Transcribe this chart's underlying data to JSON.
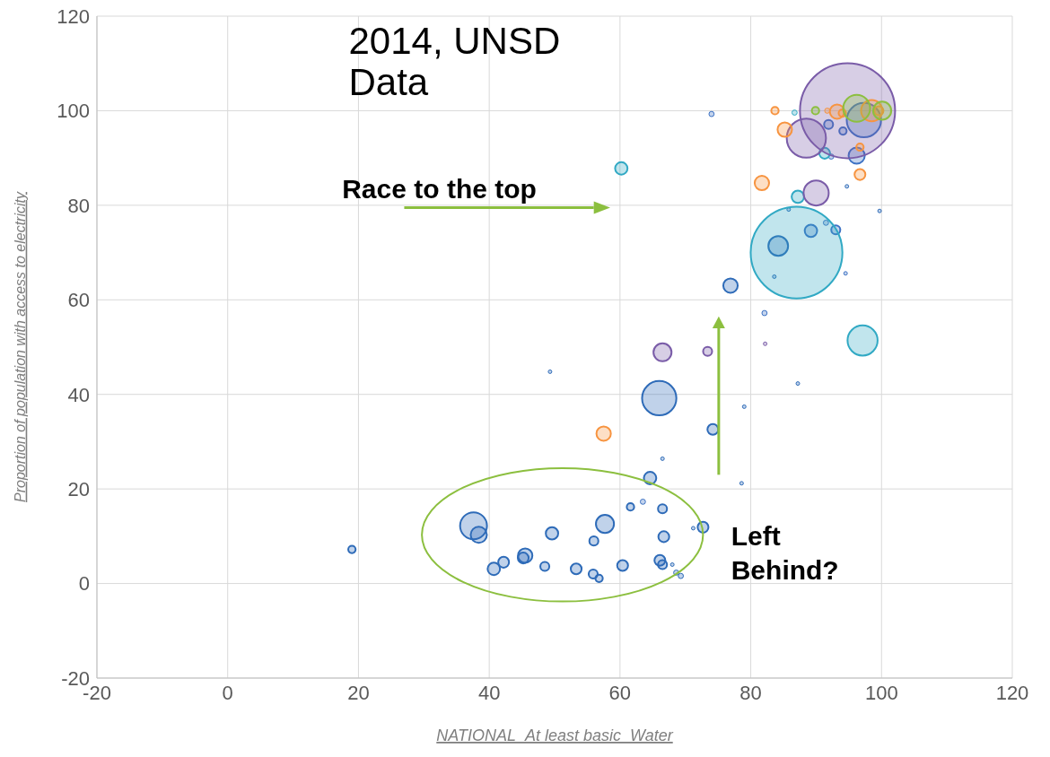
{
  "chart_data": {
    "type": "bubble",
    "title": "2014, UNSD Data",
    "xlabel": "NATIONAL_At least basic_Water",
    "ylabel": "Proportion of population with access to electricity",
    "annotations": [
      "Race to the top",
      "Left Behind?"
    ],
    "xlim": [
      -20,
      120
    ],
    "ylim": [
      -20,
      120
    ],
    "xticks": [
      -20,
      0,
      20,
      40,
      60,
      80,
      100,
      120
    ],
    "yticks": [
      -20,
      0,
      20,
      40,
      60,
      80,
      100,
      120
    ],
    "grid": true,
    "series": [
      {
        "color": "#2e6bb8",
        "x": [
          19.0,
          37.6,
          38.4,
          40.7,
          42.2,
          45.5,
          45.2,
          48.5,
          49.6,
          53.3,
          55.9,
          56.8,
          57.7,
          56.0,
          60.4,
          61.6,
          66.5,
          66.7,
          66.1,
          66.5,
          68.0,
          68.6,
          69.3,
          71.2,
          72.7,
          64.6,
          84.2,
          76.9,
          66.0,
          74.2,
          87.2,
          79.0,
          66.5,
          99.7,
          83.6,
          85.8,
          78.6,
          49.3,
          94.7
        ],
        "values": [
          7.2,
          12.2,
          10.3,
          3.1,
          4.5,
          5.9,
          5.4,
          3.6,
          10.6,
          3.1,
          2.0,
          1.1,
          12.6,
          9.0,
          3.8,
          16.2,
          15.8,
          9.9,
          4.9,
          4.0,
          4.0,
          2.3,
          1.6,
          11.7,
          11.9,
          22.3,
          71.4,
          63.0,
          39.2,
          32.6,
          42.3,
          37.4,
          26.4,
          78.8,
          64.9,
          79.1,
          21.2,
          44.8,
          84.0
        ],
        "sizes": [
          0.006,
          0.08,
          0.029,
          0.017,
          0.013,
          0.023,
          0.013,
          0.009,
          0.017,
          0.013,
          0.009,
          0.006,
          0.036,
          0.009,
          0.013,
          0.006,
          0.009,
          0.013,
          0.013,
          0.009,
          0.0014,
          0.003,
          0.003,
          0.0014,
          0.013,
          0.017,
          0.043,
          0.023,
          0.13,
          0.013,
          0.0014,
          0.0014,
          0.0014,
          0.0014,
          0.0014,
          0.0014,
          0.0014,
          0.0014,
          0.0014
        ]
      },
      {
        "color": "#3d72c4",
        "x": [
          63.5,
          94.5,
          82.1,
          89.2,
          91.5,
          93.0,
          97.3,
          91.9,
          94.1,
          92.3,
          96.2,
          74.0
        ],
        "values": [
          17.3,
          65.6,
          57.2,
          74.6,
          76.3,
          74.8,
          98.0,
          97.1,
          95.7,
          90.3,
          90.5,
          99.3
        ],
        "sizes": [
          0.003,
          0.0014,
          0.003,
          0.017,
          0.003,
          0.009,
          0.13,
          0.009,
          0.006,
          0.003,
          0.029,
          0.003
        ]
      },
      {
        "color": "#31a9c4",
        "x": [
          87.0,
          97.1,
          87.2,
          86.7,
          91.3,
          60.2
        ],
        "values": [
          70.0,
          51.4,
          81.8,
          99.6,
          91.0,
          87.8
        ],
        "sizes": [
          0.93,
          0.1,
          0.017,
          0.003,
          0.013,
          0.017
        ]
      },
      {
        "color": "#7a5ca8",
        "x": [
          94.8,
          88.5,
          90.0,
          66.5,
          73.4,
          82.2
        ],
        "values": [
          100.0,
          94.2,
          82.6,
          48.9,
          49.1,
          50.7
        ],
        "sizes": [
          1,
          0.17,
          0.07,
          0.036,
          0.009,
          0.0014
        ]
      },
      {
        "color": "#f79440",
        "x": [
          57.5,
          81.7,
          85.2,
          83.7,
          91.7,
          93.2,
          94.0,
          98.5,
          99.6,
          96.7,
          96.7
        ],
        "values": [
          31.7,
          84.7,
          96.0,
          100.0,
          100.0,
          99.8,
          99.5,
          100.0,
          100.0,
          92.3,
          86.5
        ],
        "sizes": [
          0.023,
          0.023,
          0.023,
          0.006,
          0.003,
          0.023,
          0.006,
          0.05,
          0.009,
          0.006,
          0.013
        ]
      },
      {
        "color": "#8cbf3f",
        "x": [
          89.9,
          96.2,
          100.1
        ],
        "values": [
          100.0,
          100.5,
          100.0
        ],
        "sizes": [
          0.006,
          0.08,
          0.036
        ]
      }
    ]
  }
}
